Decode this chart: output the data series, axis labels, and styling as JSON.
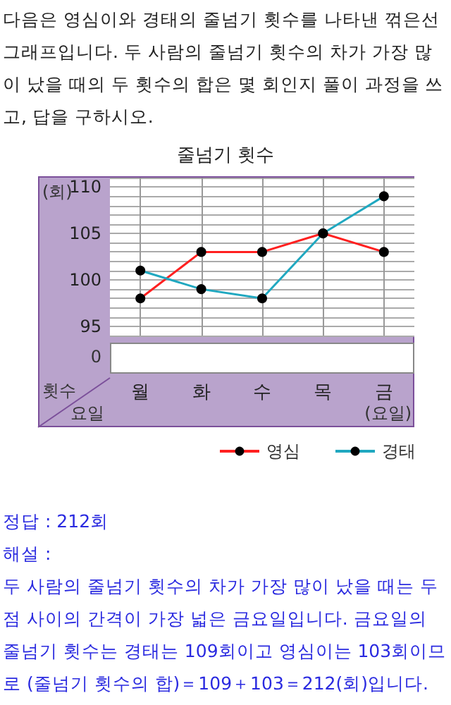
{
  "chart_data": {
    "type": "line",
    "title": "줄넘기 횟수",
    "ylabel": "(회)",
    "xlabel": "(요일)",
    "annotations": [
      "다음은 영심이와 경태의 줄넘기 횟수를 나타낸 꺾은선그래프입니다. 두 사람의 줄넘기 횟수의 차가 가장 많이 났을 때의 두 횟수의 합은 몇 회인지 풀이 과정을 쓰고, 답을 구하시오.",
      "0",
      "횟수",
      "요일",
      "정답 : 212회",
      "해설 :",
      "두 사람의 줄넘기 횟수의 차가 가장 많이 났을 때는 두 점 사이의 간격이 가장 넓은 금요일입니다. 금요일의 줄넘기 횟수는 경태는 109회이고 영심이는 103회이므로 (줄넘기 횟수의 합)＝109＋103＝212(회)입니다."
    ],
    "categories": [
      "월",
      "화",
      "수",
      "목",
      "금"
    ],
    "series": [
      {
        "name": "영심",
        "color": "#ff2020",
        "values": [
          98,
          103,
          103,
          105,
          103
        ]
      },
      {
        "name": "경태",
        "color": "#20a8c0",
        "values": [
          101,
          99,
          98,
          105,
          109
        ]
      }
    ],
    "ylim": [
      94,
      111
    ],
    "yticks": [
      {
        "value": 94,
        "label": null
      },
      95,
      {
        "value": 96,
        "label": null
      },
      {
        "value": 97,
        "label": null
      },
      {
        "value": 98,
        "label": null
      },
      {
        "value": 99,
        "label": null
      },
      100,
      {
        "value": 101,
        "label": null
      },
      {
        "value": 102,
        "label": null
      },
      {
        "value": 103,
        "label": null
      },
      {
        "value": 104,
        "label": null
      },
      105,
      {
        "value": 106,
        "label": null
      },
      {
        "value": 107,
        "label": null
      },
      {
        "value": 108,
        "label": null
      },
      {
        "value": 109,
        "label": null
      },
      110,
      {
        "value": 111,
        "label": null
      }
    ],
    "grid": true,
    "legend": "bottom right",
    "marker": "circle",
    "line_style": "solid"
  }
}
